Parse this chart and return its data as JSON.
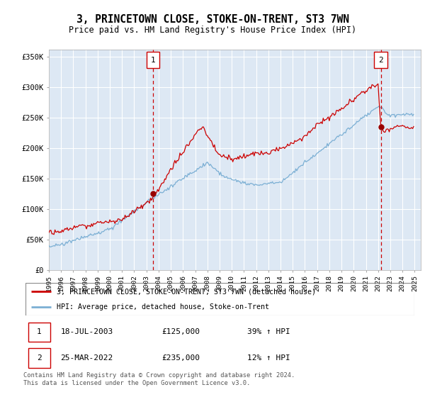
{
  "title": "3, PRINCETOWN CLOSE, STOKE-ON-TRENT, ST3 7WN",
  "subtitle": "Price paid vs. HM Land Registry's House Price Index (HPI)",
  "ylabel_ticks": [
    0,
    50000,
    100000,
    150000,
    200000,
    250000,
    300000,
    350000
  ],
  "ylabel_labels": [
    "£0",
    "£50K",
    "£100K",
    "£150K",
    "£200K",
    "£250K",
    "£300K",
    "£350K"
  ],
  "ylim": [
    0,
    362000
  ],
  "xlim_start": 1995.0,
  "xlim_end": 2025.5,
  "plot_bg_color": "#dde8f4",
  "grid_color": "#ffffff",
  "red_line_color": "#cc0000",
  "blue_line_color": "#7bafd4",
  "transaction1_x": 2003.54,
  "transaction1_y": 125000,
  "transaction2_x": 2022.23,
  "transaction2_y": 235000,
  "legend_red": "3, PRINCETOWN CLOSE, STOKE-ON-TRENT, ST3 7WN (detached house)",
  "legend_blue": "HPI: Average price, detached house, Stoke-on-Trent",
  "table_row1": [
    "1",
    "18-JUL-2003",
    "£125,000",
    "39% ↑ HPI"
  ],
  "table_row2": [
    "2",
    "25-MAR-2022",
    "£235,000",
    "12% ↑ HPI"
  ],
  "footer": "Contains HM Land Registry data © Crown copyright and database right 2024.\nThis data is licensed under the Open Government Licence v3.0.",
  "xticks": [
    1995,
    1996,
    1997,
    1998,
    1999,
    2000,
    2001,
    2002,
    2003,
    2004,
    2005,
    2006,
    2007,
    2008,
    2009,
    2010,
    2011,
    2012,
    2013,
    2014,
    2015,
    2016,
    2017,
    2018,
    2019,
    2020,
    2021,
    2022,
    2023,
    2024,
    2025
  ]
}
